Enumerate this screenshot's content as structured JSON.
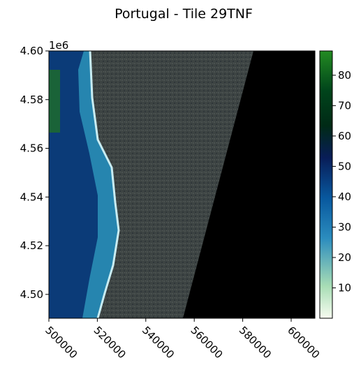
{
  "chart_data": {
    "type": "heatmap",
    "title": "Portugal - Tile 29TNF",
    "xlabel": "",
    "ylabel": "",
    "x_range": [
      500000,
      609800
    ],
    "y_range": [
      4490200,
      4600000
    ],
    "x_ticks": [
      "500000",
      "520000",
      "540000",
      "560000",
      "580000",
      "600000"
    ],
    "x_tick_values": [
      500000,
      520000,
      540000,
      560000,
      580000,
      600000
    ],
    "y_ticks": [
      "4.50",
      "4.52",
      "4.54",
      "4.56",
      "4.58",
      "4.60"
    ],
    "y_tick_values": [
      4.5,
      4.52,
      4.54,
      4.56,
      4.58,
      4.6
    ],
    "y_offset_label": "1e6",
    "colorbar": {
      "range": [
        0,
        88
      ],
      "ticks": [
        "10",
        "20",
        "30",
        "40",
        "50",
        "60",
        "70",
        "80"
      ],
      "tick_values": [
        10,
        20,
        30,
        40,
        50,
        60,
        70,
        80
      ],
      "colormap": [
        "#f7fcf0",
        "#a8ddb5",
        "#2b8cbe",
        "#08589e",
        "#081d58",
        "#002a16",
        "#00441b",
        "#006d2c",
        "#238b22"
      ]
    },
    "no_data_boundary": [
      [
        584500,
        4600000
      ],
      [
        555500,
        4490200
      ]
    ],
    "coastline_x_approx": [
      [
        4600000,
        517000
      ],
      [
        4580000,
        518500
      ],
      [
        4560000,
        521000
      ],
      [
        4540000,
        530000
      ],
      [
        4520000,
        533000
      ],
      [
        4500000,
        521000
      ]
    ]
  }
}
